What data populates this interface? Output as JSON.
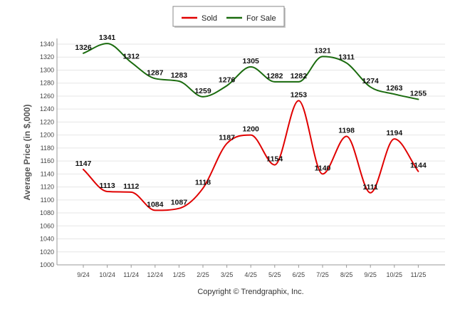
{
  "chart_data": {
    "type": "line",
    "title": "",
    "xlabel": "",
    "ylabel": "Average Price (in $,000)",
    "ylim": [
      1000,
      1340
    ],
    "ytick_step": 20,
    "categories": [
      "9/24",
      "10/24",
      "11/24",
      "12/24",
      "1/25",
      "2/25",
      "3/25",
      "4/25",
      "5/25",
      "6/25",
      "7/25",
      "8/25",
      "9/25",
      "10/25",
      "11/25"
    ],
    "series": [
      {
        "name": "Sold",
        "color": "#e00000",
        "values": [
          1147,
          1113,
          1112,
          1084,
          1087,
          1118,
          1187,
          1200,
          1154,
          1253,
          1140,
          1198,
          1111,
          1194,
          1144
        ]
      },
      {
        "name": "For Sale",
        "color": "#1a6b0e",
        "values": [
          1326,
          1341,
          1312,
          1287,
          1283,
          1259,
          1276,
          1305,
          1282,
          1282,
          1321,
          1311,
          1274,
          1263,
          1255
        ]
      }
    ],
    "legend_position": "top-center",
    "grid": "horizontal",
    "credit": "Copyright © Trendgraphix, Inc."
  }
}
